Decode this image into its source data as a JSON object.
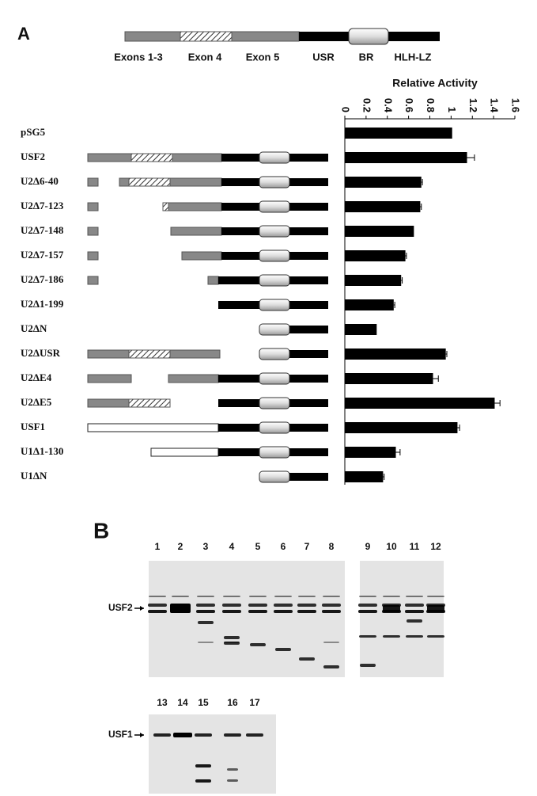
{
  "panel_a": {
    "label": "A",
    "domains": [
      "Exons 1-3",
      "Exon 4",
      "Exon 5",
      "USR",
      "BR",
      "HLH-LZ"
    ]
  },
  "chart_data": {
    "type": "bar",
    "orientation": "horizontal",
    "x_label": "Relative Activity",
    "categories": [
      "pSG5",
      "USF2",
      "U2Δ6-40",
      "U2Δ7-123",
      "U2Δ7-148",
      "U2Δ7-157",
      "U2Δ7-186",
      "U2Δ1-199",
      "U2ΔN",
      "U2ΔUSR",
      "U2ΔE4",
      "U2ΔE5",
      "USF1",
      "U1Δ1-130",
      "U1ΔN"
    ],
    "values": [
      1.01,
      1.15,
      0.72,
      0.71,
      0.65,
      0.57,
      0.53,
      0.46,
      0.3,
      0.95,
      0.83,
      1.41,
      1.06,
      0.48,
      0.36
    ],
    "errors": [
      null,
      0.07,
      0.01,
      0.01,
      null,
      0.01,
      0.01,
      0.01,
      null,
      0.01,
      0.05,
      0.05,
      0.02,
      0.04,
      0.01
    ],
    "xlim": [
      0,
      1.6
    ],
    "xticks": [
      0,
      0.2,
      0.4,
      0.6,
      0.8,
      1,
      1.2,
      1.4,
      1.6
    ],
    "color": "#000000"
  },
  "panel_b": {
    "label": "B",
    "blot_1": {
      "lanes": [
        "1",
        "2",
        "3",
        "4",
        "5",
        "6",
        "7",
        "8",
        "9",
        "10",
        "11",
        "12"
      ],
      "marker": "USF2"
    },
    "blot_2": {
      "lanes": [
        "13",
        "14",
        "15",
        "16",
        "17"
      ],
      "marker": "USF1"
    }
  }
}
